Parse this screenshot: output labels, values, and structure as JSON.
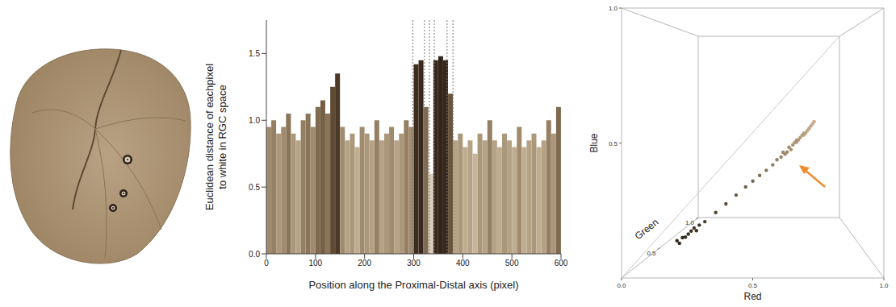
{
  "chart_data": [
    {
      "type": "bar",
      "xlabel": "Position along the Proximal-Distal axis (pixel)",
      "ylabel": "Euclidean distance of eachpixel to white in RGC space",
      "x": [
        5,
        15,
        25,
        35,
        45,
        55,
        65,
        75,
        85,
        95,
        105,
        115,
        125,
        135,
        145,
        155,
        165,
        175,
        185,
        195,
        205,
        215,
        225,
        235,
        245,
        255,
        265,
        275,
        285,
        295,
        305,
        315,
        325,
        335,
        345,
        355,
        365,
        375,
        385,
        395,
        405,
        415,
        425,
        435,
        445,
        455,
        465,
        475,
        485,
        495,
        505,
        515,
        525,
        535,
        545,
        555,
        565,
        575,
        585,
        595
      ],
      "values": [
        0.95,
        1.0,
        0.9,
        0.95,
        1.05,
        0.9,
        0.85,
        1.0,
        1.05,
        0.95,
        1.1,
        1.15,
        1.05,
        1.25,
        1.35,
        0.95,
        0.85,
        0.9,
        0.8,
        0.95,
        0.9,
        0.85,
        1.0,
        0.85,
        0.9,
        0.95,
        0.85,
        0.9,
        1.0,
        0.95,
        1.42,
        1.45,
        1.1,
        0.6,
        1.45,
        1.48,
        1.45,
        1.2,
        0.85,
        0.9,
        0.8,
        0.85,
        0.75,
        0.9,
        0.85,
        1.0,
        0.85,
        0.8,
        0.9,
        0.85,
        0.8,
        0.95,
        0.8,
        0.85,
        0.9,
        0.8,
        0.85,
        1.0,
        0.9,
        1.1
      ],
      "colors": [
        "#a08b6e",
        "#958063",
        "#ab977a",
        "#a08b6e",
        "#8a7559",
        "#ab977a",
        "#b6a385",
        "#958063",
        "#8a7559",
        "#a08b6e",
        "#7f6a4f",
        "#756046",
        "#8a7559",
        "#5f4a33",
        "#4b3826",
        "#a08b6e",
        "#b6a385",
        "#ab977a",
        "#bfad90",
        "#a08b6e",
        "#ab977a",
        "#b6a385",
        "#958063",
        "#b6a385",
        "#ab977a",
        "#a08b6e",
        "#b6a385",
        "#ab977a",
        "#958063",
        "#a08b6e",
        "#3d2d1f",
        "#38291c",
        "#7f6a4f",
        "#d9cdb9",
        "#38291c",
        "#33251a",
        "#38291c",
        "#6a553c",
        "#b6a385",
        "#ab977a",
        "#bfad90",
        "#b6a385",
        "#c6b59a",
        "#ab977a",
        "#b6a385",
        "#958063",
        "#b6a385",
        "#bfad90",
        "#ab977a",
        "#b6a385",
        "#bfad90",
        "#a08b6e",
        "#bfad90",
        "#b6a385",
        "#ab977a",
        "#bfad90",
        "#b6a385",
        "#958063",
        "#ab977a",
        "#7f6a4f"
      ],
      "boundaries": [
        298,
        322,
        332,
        342,
        368,
        380
      ],
      "xlim": [
        0,
        600
      ],
      "xticks": [
        0,
        100,
        200,
        300,
        400,
        500,
        600
      ],
      "ylim": [
        0,
        1.75
      ],
      "yticks": [
        {
          "value": 0,
          "label": "0.0"
        },
        {
          "value": 0.5,
          "label": "0.5"
        },
        {
          "value": 1,
          "label": "1.0"
        },
        {
          "value": 1.5,
          "label": "1.5"
        }
      ],
      "grid": false
    },
    {
      "type": "scatter3d",
      "xlabel": "Red",
      "ylabel": "Green",
      "zlabel": "Blue",
      "xlim": [
        0,
        1
      ],
      "ylim": [
        0,
        1
      ],
      "zlim": [
        0,
        1
      ],
      "xticks": [
        {
          "value": 0,
          "label": "0.0"
        },
        {
          "value": 0.5,
          "label": "0.5"
        },
        {
          "value": 1,
          "label": "1.0"
        }
      ],
      "yticks": [
        {
          "value": 0.5,
          "label": "0.5"
        },
        {
          "value": 1,
          "label": "1.0"
        }
      ],
      "zticks": [
        {
          "value": 0.5,
          "label": "0.5"
        },
        {
          "value": 1,
          "label": "1.0"
        }
      ],
      "points": [
        [
          0.18,
          0.15,
          0.11
        ],
        [
          0.2,
          0.16,
          0.12
        ],
        [
          0.22,
          0.18,
          0.13
        ],
        [
          0.21,
          0.17,
          0.12
        ],
        [
          0.24,
          0.2,
          0.15
        ],
        [
          0.23,
          0.19,
          0.14
        ],
        [
          0.26,
          0.21,
          0.16
        ],
        [
          0.19,
          0.15,
          0.1
        ],
        [
          0.25,
          0.2,
          0.14
        ],
        [
          0.28,
          0.23,
          0.17
        ],
        [
          0.32,
          0.27,
          0.2
        ],
        [
          0.36,
          0.3,
          0.23
        ],
        [
          0.4,
          0.34,
          0.26
        ],
        [
          0.44,
          0.37,
          0.29
        ],
        [
          0.47,
          0.4,
          0.31
        ],
        [
          0.5,
          0.43,
          0.33
        ],
        [
          0.53,
          0.45,
          0.35
        ],
        [
          0.56,
          0.48,
          0.37
        ],
        [
          0.58,
          0.5,
          0.39
        ],
        [
          0.6,
          0.52,
          0.4
        ],
        [
          0.61,
          0.53,
          0.42
        ],
        [
          0.63,
          0.54,
          0.42
        ],
        [
          0.64,
          0.56,
          0.44
        ],
        [
          0.65,
          0.56,
          0.43
        ],
        [
          0.66,
          0.57,
          0.45
        ],
        [
          0.67,
          0.58,
          0.46
        ],
        [
          0.68,
          0.59,
          0.46
        ],
        [
          0.69,
          0.6,
          0.47
        ],
        [
          0.7,
          0.61,
          0.48
        ],
        [
          0.71,
          0.62,
          0.49
        ],
        [
          0.72,
          0.62,
          0.5
        ],
        [
          0.73,
          0.63,
          0.5
        ],
        [
          0.74,
          0.64,
          0.51
        ],
        [
          0.75,
          0.65,
          0.52
        ],
        [
          0.76,
          0.66,
          0.53
        ],
        [
          0.77,
          0.67,
          0.54
        ],
        [
          0.78,
          0.68,
          0.55
        ],
        [
          0.62,
          0.55,
          0.41
        ],
        [
          0.68,
          0.58,
          0.47
        ],
        [
          0.72,
          0.63,
          0.49
        ]
      ]
    }
  ]
}
